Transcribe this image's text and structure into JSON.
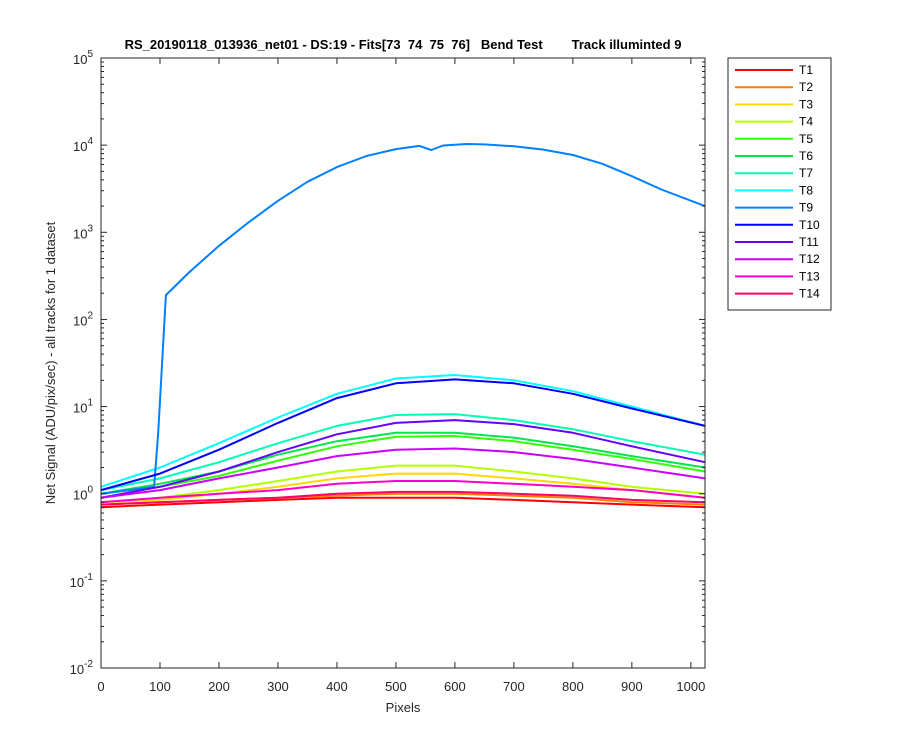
{
  "chart_data": {
    "type": "line",
    "title": "RS_20190118_013936_net01 - DS:19 - Fits[73  74  75  76]   Bend Test        Track illuminted 9",
    "xlabel": "Pixels",
    "ylabel": "Net Signal (ADU/pix/sec) - all tracks for 1 dataset",
    "xlim": [
      0,
      1024
    ],
    "ylim": [
      0.01,
      100000
    ],
    "yscale": "log",
    "grid": false,
    "legend_position": "outside-top-right",
    "x_ticks": [
      0,
      100,
      200,
      300,
      400,
      500,
      600,
      700,
      800,
      900,
      1000
    ],
    "y_ticks": [
      {
        "value": 0.01,
        "base": "10",
        "exp": "-2"
      },
      {
        "value": 0.1,
        "base": "10",
        "exp": "-1"
      },
      {
        "value": 1,
        "base": "10",
        "exp": "0"
      },
      {
        "value": 10,
        "base": "10",
        "exp": "1"
      },
      {
        "value": 100,
        "base": "10",
        "exp": "2"
      },
      {
        "value": 1000,
        "base": "10",
        "exp": "3"
      },
      {
        "value": 10000,
        "base": "10",
        "exp": "4"
      },
      {
        "value": 100000,
        "base": "10",
        "exp": "5"
      }
    ],
    "series": [
      {
        "name": "T1",
        "color": "#ff0000",
        "x": [
          0,
          100,
          200,
          300,
          400,
          500,
          600,
          700,
          800,
          900,
          1024
        ],
        "y": [
          0.7,
          0.75,
          0.8,
          0.85,
          0.9,
          0.9,
          0.9,
          0.85,
          0.8,
          0.75,
          0.7
        ]
      },
      {
        "name": "T2",
        "color": "#ff7f00",
        "x": [
          0,
          100,
          200,
          300,
          400,
          500,
          600,
          700,
          800,
          900,
          1024
        ],
        "y": [
          0.75,
          0.8,
          0.85,
          0.9,
          0.95,
          1.0,
          1.0,
          0.95,
          0.9,
          0.8,
          0.75
        ]
      },
      {
        "name": "T3",
        "color": "#ffd700",
        "x": [
          0,
          100,
          200,
          300,
          400,
          500,
          600,
          700,
          800,
          900,
          1024
        ],
        "y": [
          0.8,
          0.85,
          1.0,
          1.2,
          1.5,
          1.7,
          1.7,
          1.5,
          1.3,
          1.1,
          0.9
        ]
      },
      {
        "name": "T4",
        "color": "#b2ff00",
        "x": [
          0,
          100,
          200,
          300,
          400,
          500,
          600,
          700,
          800,
          900,
          1024
        ],
        "y": [
          0.8,
          0.9,
          1.1,
          1.4,
          1.8,
          2.1,
          2.1,
          1.8,
          1.5,
          1.2,
          1.0
        ]
      },
      {
        "name": "T5",
        "color": "#33ff00",
        "x": [
          0,
          100,
          200,
          300,
          400,
          500,
          600,
          700,
          800,
          900,
          1024
        ],
        "y": [
          1.0,
          1.2,
          1.6,
          2.4,
          3.5,
          4.5,
          4.6,
          4.0,
          3.2,
          2.5,
          1.8
        ]
      },
      {
        "name": "T6",
        "color": "#00e64d",
        "x": [
          0,
          100,
          200,
          300,
          400,
          500,
          600,
          700,
          800,
          900,
          1024
        ],
        "y": [
          1.0,
          1.3,
          1.8,
          2.8,
          4.0,
          5.0,
          5.0,
          4.4,
          3.5,
          2.7,
          2.0
        ]
      },
      {
        "name": "T7",
        "color": "#00ffb2",
        "x": [
          0,
          100,
          200,
          300,
          400,
          500,
          600,
          700,
          800,
          900,
          1024
        ],
        "y": [
          1.1,
          1.5,
          2.3,
          3.8,
          6.0,
          8.0,
          8.2,
          7.0,
          5.5,
          4.0,
          2.8
        ]
      },
      {
        "name": "T8",
        "color": "#00ffff",
        "x": [
          0,
          100,
          200,
          300,
          400,
          500,
          600,
          700,
          800,
          900,
          1024
        ],
        "y": [
          1.2,
          2.0,
          3.8,
          7.5,
          14,
          21,
          23,
          20,
          15,
          10,
          6
        ]
      },
      {
        "name": "T9",
        "color": "#0080ff",
        "x": [
          0,
          90,
          97,
          110,
          150,
          200,
          250,
          300,
          350,
          400,
          450,
          500,
          540,
          560,
          580,
          620,
          650,
          700,
          750,
          800,
          850,
          900,
          950,
          1024
        ],
        "y": [
          1.0,
          1.2,
          5,
          190,
          350,
          700,
          1300,
          2300,
          3800,
          5600,
          7500,
          9000,
          9800,
          8800,
          9900,
          10300,
          10200,
          9700,
          8900,
          7700,
          6100,
          4400,
          3100,
          2000
        ]
      },
      {
        "name": "T10",
        "color": "#0000ff",
        "x": [
          0,
          100,
          200,
          300,
          400,
          500,
          600,
          700,
          800,
          900,
          1024
        ],
        "y": [
          1.1,
          1.7,
          3.2,
          6.5,
          12.5,
          18.5,
          20.5,
          18.5,
          14,
          9.5,
          6
        ]
      },
      {
        "name": "T11",
        "color": "#6600ff",
        "x": [
          0,
          100,
          200,
          300,
          400,
          500,
          600,
          700,
          800,
          900,
          1024
        ],
        "y": [
          0.9,
          1.2,
          1.8,
          3.0,
          4.8,
          6.5,
          7.0,
          6.3,
          5.0,
          3.5,
          2.3
        ]
      },
      {
        "name": "T12",
        "color": "#cc00ff",
        "x": [
          0,
          100,
          200,
          300,
          400,
          500,
          600,
          700,
          800,
          900,
          1024
        ],
        "y": [
          0.9,
          1.1,
          1.5,
          2.0,
          2.7,
          3.2,
          3.3,
          3.0,
          2.5,
          2.0,
          1.5
        ]
      },
      {
        "name": "T13",
        "color": "#ff00cc",
        "x": [
          0,
          100,
          200,
          300,
          400,
          500,
          600,
          700,
          800,
          900,
          1024
        ],
        "y": [
          0.8,
          0.9,
          1.0,
          1.1,
          1.3,
          1.4,
          1.4,
          1.3,
          1.2,
          1.1,
          0.9
        ]
      },
      {
        "name": "T14",
        "color": "#ff0066",
        "x": [
          0,
          100,
          200,
          300,
          400,
          500,
          600,
          700,
          800,
          900,
          1024
        ],
        "y": [
          0.75,
          0.8,
          0.85,
          0.9,
          1.0,
          1.05,
          1.05,
          1.0,
          0.95,
          0.85,
          0.8
        ]
      }
    ]
  }
}
